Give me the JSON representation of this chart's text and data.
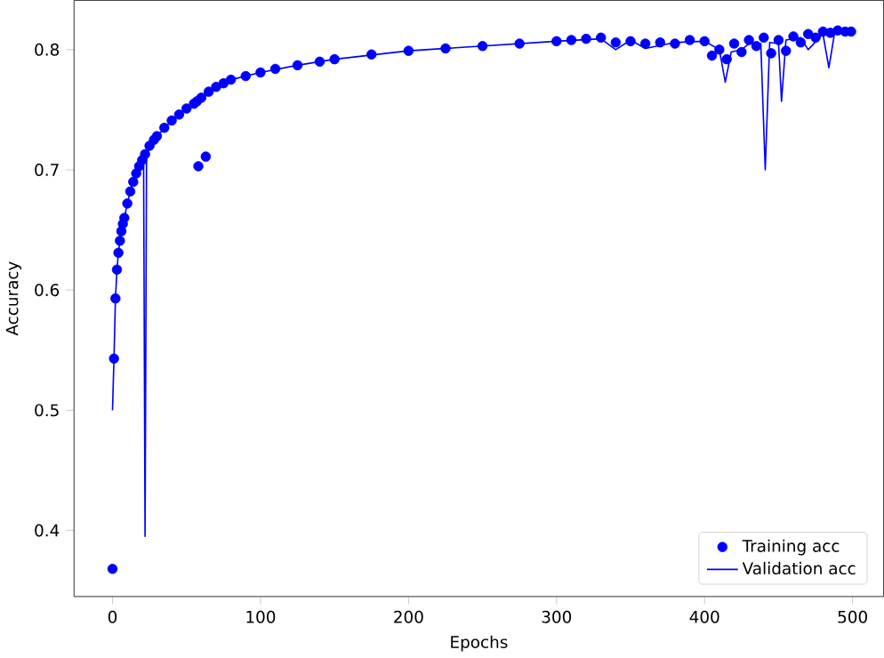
{
  "chart_data": {
    "type": "line",
    "xlabel": "Epochs",
    "ylabel": "Accuracy",
    "xlim": [
      -26,
      521
    ],
    "ylim": [
      0.345,
      0.841
    ],
    "xticks": [
      0,
      100,
      200,
      300,
      400,
      500
    ],
    "yticks": [
      0.4,
      0.5,
      0.6,
      0.7,
      0.8
    ],
    "legend": "bottom right",
    "grid": false,
    "series": [
      {
        "name": "Training acc",
        "type": "scatter",
        "marker": "circle",
        "color": "#0000ff",
        "x": [
          0,
          1,
          2,
          3,
          4,
          5,
          6,
          7,
          8,
          10,
          12,
          14,
          16,
          18,
          20,
          22,
          25,
          28,
          30,
          35,
          40,
          45,
          50,
          55,
          57,
          58,
          60,
          63,
          65,
          70,
          75,
          80,
          90,
          100,
          110,
          125,
          140,
          150,
          175,
          200,
          225,
          250,
          275,
          300,
          310,
          320,
          330,
          340,
          350,
          360,
          370,
          380,
          390,
          400,
          405,
          410,
          415,
          420,
          425,
          430,
          435,
          440,
          445,
          450,
          455,
          460,
          465,
          470,
          475,
          480,
          485,
          490,
          495,
          499
        ],
        "values": [
          0.368,
          0.543,
          0.593,
          0.617,
          0.631,
          0.641,
          0.649,
          0.655,
          0.66,
          0.672,
          0.682,
          0.69,
          0.697,
          0.703,
          0.708,
          0.713,
          0.72,
          0.725,
          0.728,
          0.735,
          0.741,
          0.746,
          0.751,
          0.755,
          0.757,
          0.703,
          0.76,
          0.711,
          0.765,
          0.769,
          0.772,
          0.775,
          0.778,
          0.781,
          0.784,
          0.787,
          0.79,
          0.792,
          0.796,
          0.799,
          0.801,
          0.803,
          0.805,
          0.807,
          0.808,
          0.809,
          0.81,
          0.806,
          0.807,
          0.805,
          0.806,
          0.805,
          0.808,
          0.807,
          0.795,
          0.8,
          0.792,
          0.805,
          0.798,
          0.808,
          0.803,
          0.81,
          0.797,
          0.808,
          0.799,
          0.811,
          0.806,
          0.813,
          0.81,
          0.815,
          0.814,
          0.816,
          0.815,
          0.815
        ]
      },
      {
        "name": "Validation acc",
        "marker": "none",
        "color": "#0000ff",
        "x": [
          0,
          1,
          2,
          3,
          4,
          5,
          6,
          8,
          10,
          12,
          15,
          18,
          20,
          21,
          22,
          23,
          25,
          30,
          40,
          50,
          60,
          65,
          70,
          80,
          100,
          125,
          150,
          200,
          250,
          300,
          330,
          340,
          350,
          360,
          380,
          400,
          410,
          414,
          418,
          425,
          430,
          438,
          441,
          444,
          450,
          452,
          455,
          465,
          470,
          480,
          484,
          488,
          495,
          499
        ],
        "values": [
          0.5,
          0.543,
          0.593,
          0.617,
          0.631,
          0.641,
          0.649,
          0.66,
          0.672,
          0.682,
          0.695,
          0.703,
          0.708,
          0.71,
          0.395,
          0.71,
          0.72,
          0.728,
          0.741,
          0.751,
          0.76,
          0.765,
          0.769,
          0.775,
          0.781,
          0.787,
          0.792,
          0.799,
          0.803,
          0.807,
          0.809,
          0.8,
          0.808,
          0.801,
          0.806,
          0.807,
          0.8,
          0.773,
          0.798,
          0.8,
          0.805,
          0.805,
          0.7,
          0.806,
          0.805,
          0.757,
          0.808,
          0.81,
          0.8,
          0.813,
          0.785,
          0.815,
          0.815,
          0.815
        ]
      }
    ]
  }
}
